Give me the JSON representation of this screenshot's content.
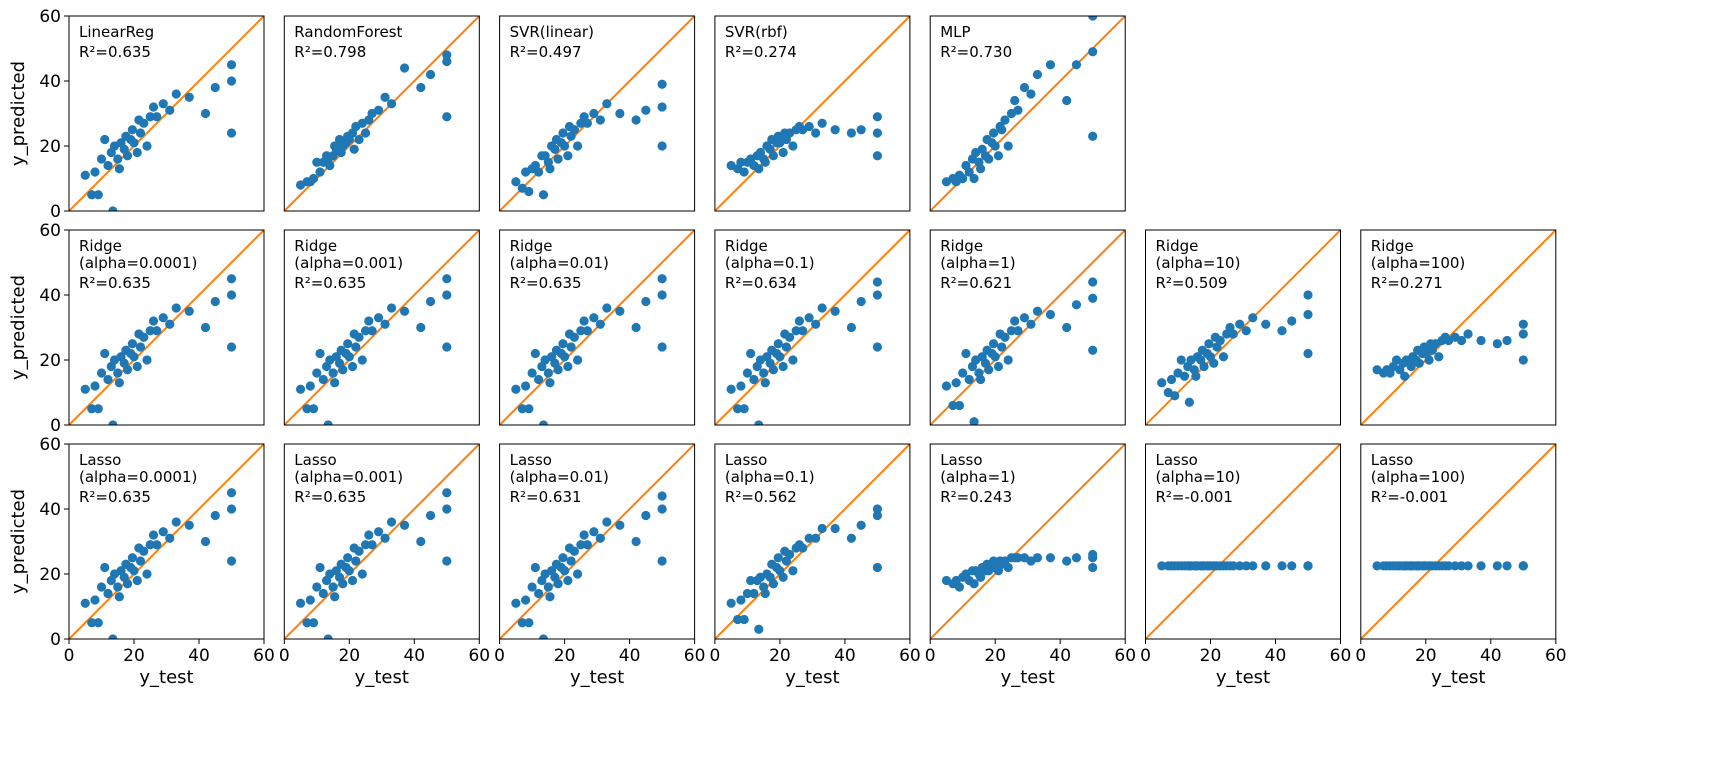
{
  "chart_data": {
    "type": "scatter",
    "xlabel": "y_test",
    "ylabel": "y_predicted",
    "xlim": [
      0,
      60
    ],
    "ylim": [
      0,
      60
    ],
    "xticks": [
      0,
      20,
      40,
      60
    ],
    "yticks": [
      0,
      20,
      40,
      60
    ],
    "point_color": "#1f77b4",
    "line_color": "#ff7f0e",
    "x": [
      5,
      7,
      8,
      9,
      10,
      11,
      12,
      13,
      13.5,
      14,
      15,
      15.5,
      16,
      17,
      17.5,
      18,
      19,
      19.5,
      20,
      21,
      21.5,
      22,
      23,
      24,
      25,
      26,
      27,
      29,
      31,
      33,
      37,
      42,
      45,
      50,
      50,
      50
    ],
    "panels": [
      {
        "name": "LinearReg",
        "r2": "R²=0.635",
        "values": [
          11,
          5,
          12,
          5,
          16,
          22,
          14,
          18,
          0,
          20,
          16,
          13,
          21,
          19,
          23,
          17,
          22,
          25,
          21,
          18,
          28,
          24,
          27,
          20,
          29,
          32,
          29,
          33,
          31,
          36,
          35,
          30,
          38,
          45,
          40,
          24
        ]
      },
      {
        "name": "RandomForest",
        "r2": "R²=0.798",
        "values": [
          8,
          9,
          9,
          10,
          15,
          12,
          15,
          17,
          16,
          14,
          17,
          20,
          19,
          22,
          18,
          20,
          21,
          23,
          22,
          24,
          19,
          26,
          22,
          27,
          24,
          28,
          30,
          31,
          35,
          33,
          44,
          38,
          42,
          48,
          46,
          29
        ]
      },
      {
        "name": "SVR(linear)",
        "r2": "R²=0.497",
        "values": [
          9,
          7,
          12,
          6,
          13,
          14,
          12,
          17,
          5,
          17,
          15,
          13,
          20,
          19,
          22,
          16,
          21,
          24,
          20,
          17,
          26,
          23,
          25,
          20,
          27,
          29,
          27,
          30,
          28,
          33,
          30,
          28,
          31,
          39,
          32,
          20
        ]
      },
      {
        "name": "SVR(rbf)",
        "r2": "R²=0.274",
        "values": [
          14,
          13,
          15,
          12,
          15,
          16,
          14,
          17,
          13,
          18,
          16,
          15,
          20,
          19,
          22,
          17,
          21,
          23,
          21,
          18,
          24,
          22,
          24,
          20,
          25,
          26,
          25,
          26,
          24,
          27,
          25,
          24,
          25,
          29,
          24,
          17
        ]
      },
      {
        "name": "MLP",
        "r2": "R²=0.730",
        "values": [
          9,
          10,
          9,
          11,
          10,
          14,
          12,
          16,
          10,
          18,
          15,
          13,
          19,
          17,
          22,
          16,
          21,
          24,
          20,
          17,
          26,
          25,
          28,
          20,
          30,
          34,
          31,
          38,
          36,
          42,
          45,
          34,
          45,
          60,
          49,
          23
        ]
      },
      {
        "name": "Ridge",
        "params": "(alpha=0.0001)",
        "r2": "R²=0.635",
        "values": [
          11,
          5,
          12,
          5,
          16,
          22,
          14,
          18,
          0,
          20,
          16,
          13,
          21,
          19,
          23,
          17,
          22,
          25,
          21,
          18,
          28,
          24,
          27,
          20,
          29,
          32,
          29,
          33,
          31,
          36,
          35,
          30,
          38,
          45,
          40,
          24
        ]
      },
      {
        "name": "Ridge",
        "params": "(alpha=0.001)",
        "r2": "R²=0.635",
        "values": [
          11,
          5,
          12,
          5,
          16,
          22,
          14,
          18,
          0,
          20,
          16,
          13,
          21,
          19,
          23,
          17,
          22,
          25,
          21,
          18,
          28,
          24,
          27,
          20,
          29,
          32,
          29,
          33,
          31,
          36,
          35,
          30,
          38,
          45,
          40,
          24
        ]
      },
      {
        "name": "Ridge",
        "params": "(alpha=0.01)",
        "r2": "R²=0.635",
        "values": [
          11,
          5,
          12,
          5,
          16,
          22,
          14,
          18,
          0,
          20,
          16,
          13,
          21,
          19,
          23,
          17,
          22,
          25,
          21,
          18,
          28,
          24,
          27,
          20,
          29,
          32,
          29,
          33,
          31,
          36,
          35,
          30,
          38,
          45,
          40,
          24
        ]
      },
      {
        "name": "Ridge",
        "params": "(alpha=0.1)",
        "r2": "R²=0.634",
        "values": [
          11,
          5,
          12,
          5,
          16,
          22,
          14,
          18,
          0,
          20,
          16,
          13,
          21,
          19,
          23,
          17,
          22,
          25,
          21,
          18,
          28,
          24,
          27,
          20,
          29,
          32,
          29,
          33,
          31,
          36,
          35,
          30,
          38,
          44,
          40,
          24
        ]
      },
      {
        "name": "Ridge",
        "params": "(alpha=1)",
        "r2": "R²=0.621",
        "values": [
          12,
          6,
          13,
          6,
          16,
          22,
          14,
          18,
          1,
          20,
          16,
          14,
          21,
          19,
          23,
          17,
          22,
          25,
          21,
          18,
          28,
          24,
          27,
          20,
          29,
          32,
          29,
          33,
          31,
          35,
          34,
          30,
          37,
          44,
          39,
          23
        ]
      },
      {
        "name": "Ridge",
        "params": "(alpha=10)",
        "r2": "R²=0.509",
        "values": [
          13,
          10,
          14,
          9,
          16,
          20,
          15,
          18,
          7,
          20,
          17,
          15,
          21,
          20,
          23,
          18,
          22,
          25,
          21,
          19,
          27,
          24,
          26,
          21,
          28,
          30,
          28,
          31,
          29,
          33,
          31,
          29,
          32,
          40,
          34,
          22
        ]
      },
      {
        "name": "Ridge",
        "params": "(alpha=100)",
        "r2": "R²=0.271",
        "values": [
          17,
          16,
          17,
          16,
          18,
          20,
          17,
          19,
          15,
          20,
          19,
          18,
          21,
          20,
          23,
          19,
          22,
          24,
          22,
          20,
          25,
          23,
          25,
          21,
          26,
          27,
          26,
          27,
          26,
          28,
          26,
          25,
          26,
          31,
          28,
          20
        ]
      },
      {
        "name": "Lasso",
        "params": "(alpha=0.0001)",
        "r2": "R²=0.635",
        "values": [
          11,
          5,
          12,
          5,
          16,
          22,
          14,
          18,
          0,
          20,
          16,
          13,
          21,
          19,
          23,
          17,
          22,
          25,
          21,
          18,
          28,
          24,
          27,
          20,
          29,
          32,
          29,
          33,
          31,
          36,
          35,
          30,
          38,
          45,
          40,
          24
        ]
      },
      {
        "name": "Lasso",
        "params": "(alpha=0.001)",
        "r2": "R²=0.635",
        "values": [
          11,
          5,
          12,
          5,
          16,
          22,
          14,
          18,
          0,
          20,
          16,
          13,
          21,
          19,
          23,
          17,
          22,
          25,
          21,
          18,
          28,
          24,
          27,
          20,
          29,
          32,
          29,
          33,
          31,
          36,
          35,
          30,
          38,
          45,
          40,
          24
        ]
      },
      {
        "name": "Lasso",
        "params": "(alpha=0.01)",
        "r2": "R²=0.631",
        "values": [
          11,
          5,
          12,
          5,
          16,
          22,
          14,
          18,
          0,
          20,
          16,
          13,
          21,
          19,
          23,
          17,
          22,
          25,
          21,
          18,
          28,
          24,
          27,
          20,
          29,
          32,
          29,
          33,
          31,
          36,
          35,
          30,
          38,
          44,
          40,
          24
        ]
      },
      {
        "name": "Lasso",
        "params": "(alpha=0.1)",
        "r2": "R²=0.562",
        "values": [
          11,
          6,
          12,
          6,
          14,
          18,
          14,
          18,
          3,
          19,
          16,
          14,
          20,
          19,
          23,
          17,
          22,
          25,
          21,
          19,
          27,
          24,
          26,
          21,
          28,
          29,
          28,
          31,
          31,
          34,
          34,
          31,
          35,
          40,
          38,
          22
        ]
      },
      {
        "name": "Lasso",
        "params": "(alpha=1)",
        "r2": "R²=0.243",
        "values": [
          18,
          17,
          18,
          16,
          19,
          20,
          18,
          21,
          17,
          21,
          20,
          19,
          22,
          21,
          23,
          21,
          22,
          24,
          22,
          21,
          24,
          23,
          24,
          22,
          25,
          25,
          25,
          25,
          24,
          25,
          25,
          24,
          25,
          26,
          25,
          22
        ]
      },
      {
        "name": "Lasso",
        "params": "(alpha=10)",
        "r2": "R²=-0.001",
        "values": [
          22.5,
          22.5,
          22.5,
          22.5,
          22.5,
          22.5,
          22.5,
          22.5,
          22.5,
          22.5,
          22.5,
          22.5,
          22.5,
          22.5,
          22.5,
          22.5,
          22.5,
          22.5,
          22.5,
          22.5,
          22.5,
          22.5,
          22.5,
          22.5,
          22.5,
          22.5,
          22.5,
          22.5,
          22.5,
          22.5,
          22.5,
          22.5,
          22.5,
          22.5,
          22.5,
          22.5
        ]
      },
      {
        "name": "Lasso",
        "params": "(alpha=100)",
        "r2": "R²=-0.001",
        "values": [
          22.5,
          22.5,
          22.5,
          22.5,
          22.5,
          22.5,
          22.5,
          22.5,
          22.5,
          22.5,
          22.5,
          22.5,
          22.5,
          22.5,
          22.5,
          22.5,
          22.5,
          22.5,
          22.5,
          22.5,
          22.5,
          22.5,
          22.5,
          22.5,
          22.5,
          22.5,
          22.5,
          22.5,
          22.5,
          22.5,
          22.5,
          22.5,
          22.5,
          22.5,
          22.5,
          22.5
        ]
      }
    ]
  }
}
